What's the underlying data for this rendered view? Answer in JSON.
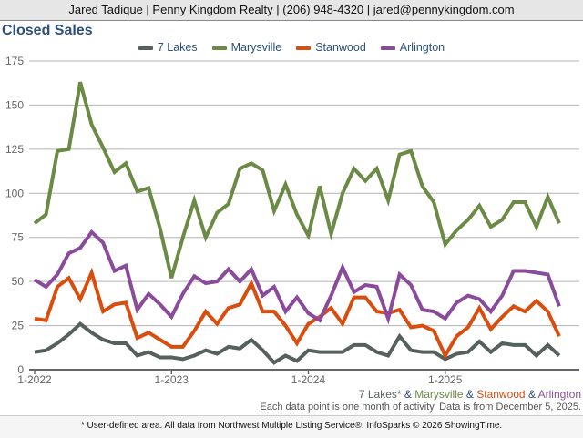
{
  "header": {
    "contact": "Jared Tadique | Penny Kingdom Realty | (206) 948-4320 | jared@pennykingdom.com"
  },
  "notes": {
    "areas": [
      {
        "name": "7 Lakes*",
        "color": "#56605c"
      },
      {
        "sep": " & "
      },
      {
        "name": "Marysville",
        "color": "#6a8a45"
      },
      {
        "sep": " & "
      },
      {
        "name": "Stanwood",
        "color": "#d94e0f"
      },
      {
        "sep": " & "
      },
      {
        "name": "Arlington",
        "color": "#8a4c9a"
      }
    ],
    "data_note": "Each data point is one month of activity. Data is from December 5, 2025.",
    "footer": "* User-defined area. All data from Northwest Multiple Listing Service®. InfoSparks © 2026 ShowingTime."
  },
  "chart_data": {
    "type": "line",
    "title": "Closed Sales",
    "xlabel": "",
    "ylabel": "",
    "ylim": [
      0,
      175
    ],
    "yticks": [
      0,
      25,
      50,
      75,
      100,
      125,
      150,
      175
    ],
    "xticks": [
      {
        "label": "1-2022",
        "index": 0
      },
      {
        "label": "1-2023",
        "index": 12
      },
      {
        "label": "1-2024",
        "index": 24
      },
      {
        "label": "1-2025",
        "index": 36
      }
    ],
    "x_start": "2022-01",
    "x_end": "2025-11",
    "grid": true,
    "legend_position": "top",
    "series": [
      {
        "name": "7 Lakes",
        "color": "#56605c",
        "values": [
          10,
          11,
          15,
          20,
          26,
          21,
          17,
          15,
          15,
          8,
          10,
          7,
          7,
          6,
          8,
          11,
          9,
          13,
          12,
          17,
          11,
          4,
          8,
          5,
          11,
          10,
          10,
          10,
          14,
          14,
          10,
          8,
          19,
          11,
          10,
          10,
          6,
          9,
          10,
          16,
          10,
          15,
          14,
          14,
          8,
          14,
          8
        ]
      },
      {
        "name": "Marysville",
        "color": "#6a8a45",
        "values": [
          83,
          88,
          124,
          125,
          163,
          139,
          126,
          112,
          117,
          101,
          103,
          80,
          52,
          75,
          96,
          75,
          89,
          94,
          114,
          117,
          113,
          90,
          105,
          88,
          76,
          104,
          77,
          100,
          114,
          107,
          114,
          96,
          122,
          124,
          104,
          95,
          71,
          79,
          85,
          93,
          81,
          85,
          95,
          95,
          81,
          98,
          83
        ]
      },
      {
        "name": "Stanwood",
        "color": "#d94e0f",
        "values": [
          29,
          28,
          47,
          52,
          40,
          55,
          33,
          37,
          38,
          18,
          21,
          17,
          13,
          13,
          22,
          33,
          26,
          35,
          37,
          49,
          33,
          33,
          25,
          15,
          26,
          30,
          35,
          26,
          41,
          41,
          33,
          32,
          34,
          24,
          25,
          22,
          8,
          19,
          24,
          35,
          23,
          30,
          36,
          33,
          39,
          33,
          19
        ]
      },
      {
        "name": "Arlington",
        "color": "#8a4c9a",
        "values": [
          51,
          47,
          54,
          66,
          69,
          78,
          72,
          56,
          59,
          34,
          43,
          37,
          30,
          43,
          53,
          49,
          50,
          57,
          50,
          57,
          42,
          47,
          33,
          41,
          32,
          28,
          42,
          58,
          44,
          48,
          47,
          29,
          54,
          48,
          34,
          33,
          29,
          38,
          42,
          40,
          33,
          42,
          56,
          56,
          55,
          54,
          36
        ]
      }
    ]
  }
}
